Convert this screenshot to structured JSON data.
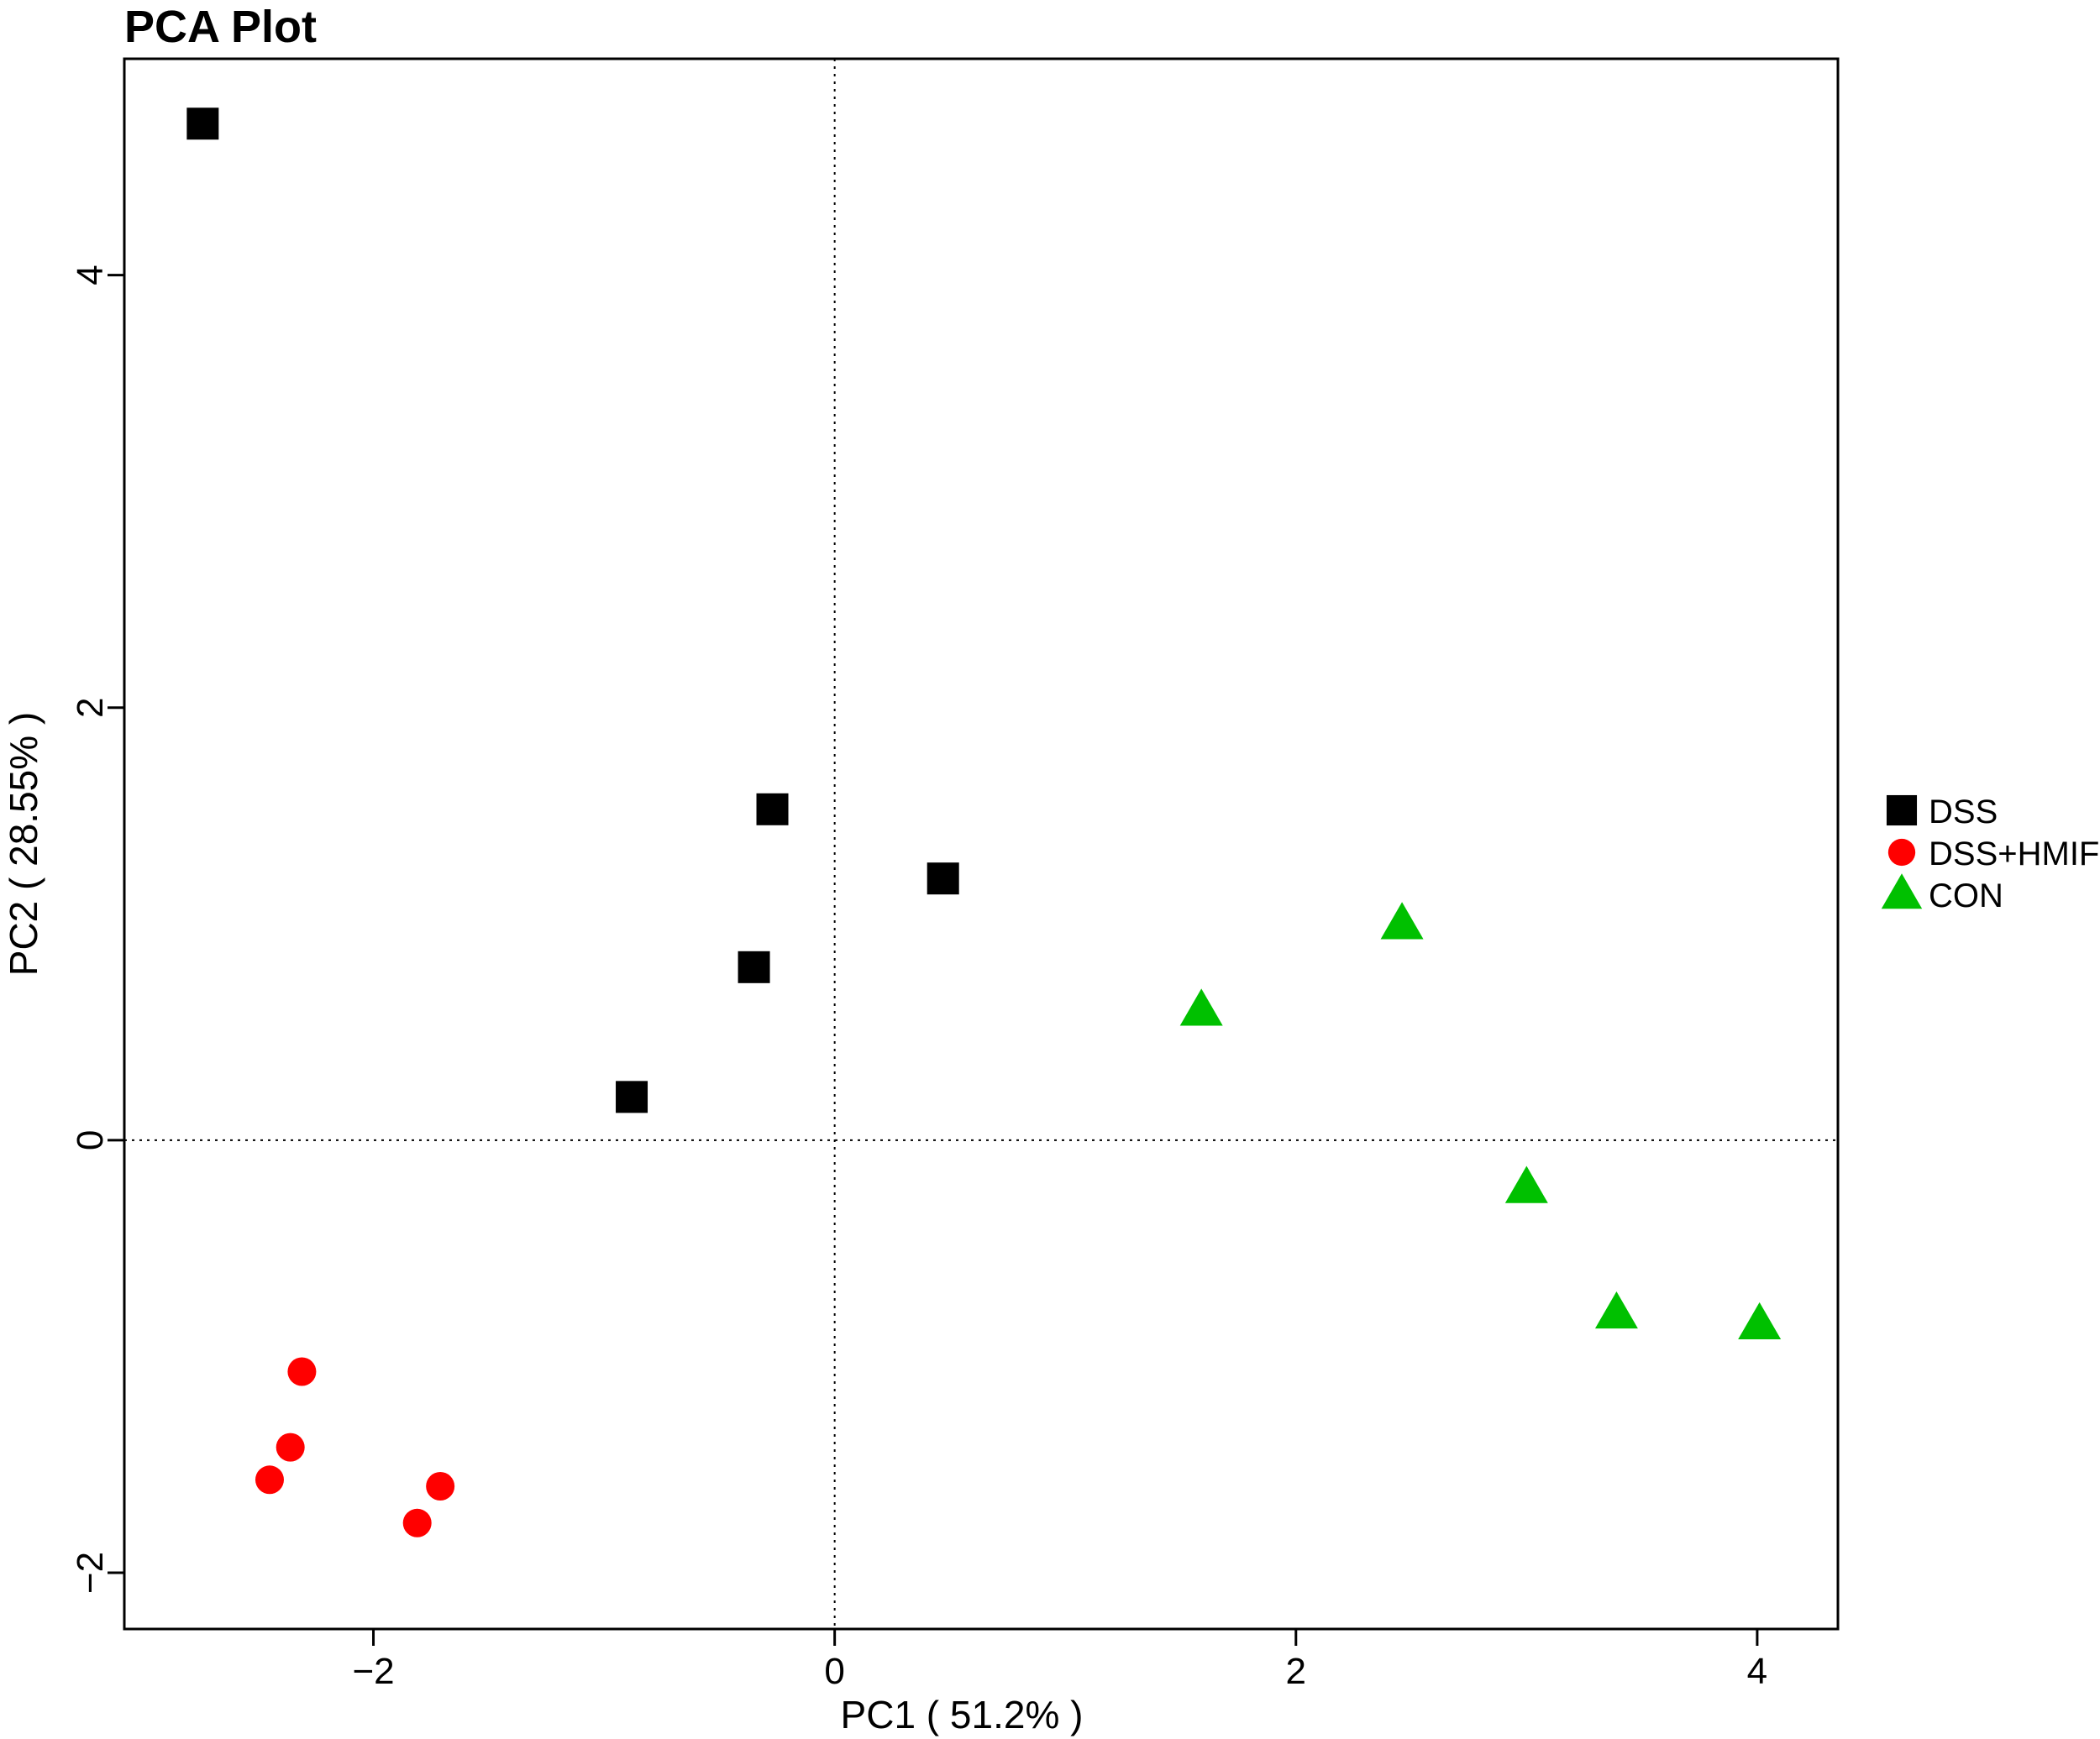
{
  "chart_data": {
    "type": "scatter",
    "title": "PCA Plot",
    "xlabel": "PC1 ( 51.2% )",
    "ylabel": "PC2 ( 28.55% )",
    "xlim": [
      -3.08,
      4.35
    ],
    "ylim": [
      -2.26,
      5.0
    ],
    "xticks": [
      -2,
      0,
      2,
      4
    ],
    "yticks": [
      -2,
      0,
      2,
      4
    ],
    "xtick_labels": [
      "−2",
      "0",
      "2",
      "4"
    ],
    "ytick_labels": [
      "−2",
      "0",
      "2",
      "4"
    ],
    "reference_lines": {
      "x": 0,
      "y": 0,
      "style": "dotted"
    },
    "grid": false,
    "legend_position": "right",
    "series": [
      {
        "name": "DSS",
        "marker": "square",
        "color": "#000000",
        "x": [
          -2.74,
          -0.27,
          0.47,
          -0.35,
          -0.88
        ],
        "y": [
          4.7,
          1.53,
          1.21,
          0.8,
          0.2
        ]
      },
      {
        "name": "DSS+HMIF",
        "marker": "circle",
        "color": "#ff0000",
        "x": [
          -2.31,
          -2.36,
          -2.45,
          -1.71,
          -1.81
        ],
        "y": [
          -1.07,
          -1.42,
          -1.57,
          -1.6,
          -1.77
        ]
      },
      {
        "name": "CON",
        "marker": "triangle",
        "color": "#00c000",
        "x": [
          1.59,
          2.46,
          3.0,
          3.39,
          4.01
        ],
        "y": [
          0.6,
          1.0,
          -0.22,
          -0.8,
          -0.85
        ]
      }
    ]
  }
}
